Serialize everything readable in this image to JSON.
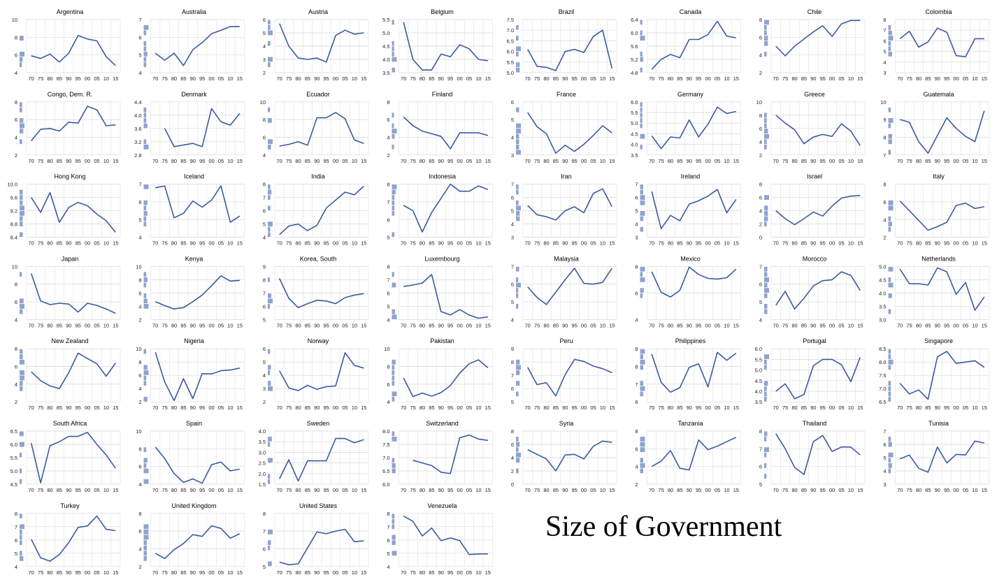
{
  "figure": {
    "title": "Size of Government",
    "line_color": "#3A5BA0",
    "hist_color": "#8FA3CF",
    "grid_color": "#D9D9D9",
    "x_tick_labels": [
      "70",
      "75",
      "80",
      "85",
      "90",
      "95",
      "00",
      "05",
      "10",
      "15"
    ]
  },
  "chart_data": [
    {
      "type": "line",
      "title": "Argentina",
      "ylim": [
        4,
        10
      ],
      "yticks": [
        4,
        6,
        8,
        10
      ],
      "y": [
        5.9,
        5.6,
        6.1,
        5.2,
        6.2,
        8.2,
        7.8,
        7.6,
        5.8,
        4.8
      ]
    },
    {
      "type": "line",
      "title": "Australia",
      "ylim": [
        4,
        7
      ],
      "yticks": [
        4,
        5,
        6,
        7
      ],
      "y": [
        5.1,
        4.7,
        5.1,
        4.4,
        5.3,
        5.7,
        6.2,
        6.4,
        6.6,
        6.6
      ]
    },
    {
      "type": "line",
      "title": "Austria",
      "ylim": [
        2,
        6
      ],
      "yticks": [
        2,
        3,
        4,
        5,
        6
      ],
      "y": [
        5.7,
        4.0,
        3.1,
        3.0,
        3.1,
        2.8,
        4.8,
        5.2,
        4.9,
        5.0
      ]
    },
    {
      "type": "line",
      "title": "Belgium",
      "ylim": [
        3.5,
        5.5
      ],
      "yticks": [
        3.5,
        4.0,
        4.5,
        5.0,
        5.5
      ],
      "y": [
        5.4,
        4.0,
        3.6,
        3.6,
        4.2,
        4.1,
        4.55,
        4.4,
        4.0,
        3.95
      ]
    },
    {
      "type": "line",
      "title": "Brazil",
      "ylim": [
        5.0,
        7.5
      ],
      "yticks": [
        5.0,
        5.5,
        6.0,
        6.5,
        7.0,
        7.5
      ],
      "y": [
        6.1,
        5.3,
        5.25,
        5.1,
        6.0,
        6.1,
        5.95,
        6.7,
        7.0,
        5.2
      ]
    },
    {
      "type": "line",
      "title": "Canada",
      "ylim": [
        4.8,
        6.4
      ],
      "yticks": [
        4.8,
        5.2,
        5.6,
        6.0,
        6.4
      ],
      "y": [
        4.9,
        5.2,
        5.35,
        5.25,
        5.8,
        5.8,
        5.95,
        6.35,
        5.9,
        5.85
      ]
    },
    {
      "type": "line",
      "title": "Chile",
      "ylim": [
        2,
        8
      ],
      "yticks": [
        2,
        4,
        6,
        8
      ],
      "y": [
        5.0,
        3.9,
        5.0,
        5.8,
        6.6,
        7.3,
        6.1,
        7.5,
        7.9,
        7.9
      ]
    },
    {
      "type": "line",
      "title": "Colombia",
      "ylim": [
        3,
        8
      ],
      "yticks": [
        3,
        4,
        5,
        6,
        7,
        8
      ],
      "y": [
        6.2,
        6.9,
        5.4,
        5.9,
        7.2,
        6.8,
        4.6,
        4.5,
        6.2,
        6.2
      ]
    },
    {
      "type": "line",
      "title": "Congo, Dem. R.",
      "ylim": [
        2,
        8
      ],
      "yticks": [
        2,
        4,
        6,
        8
      ],
      "y": [
        3.6,
        4.9,
        5.0,
        4.7,
        5.7,
        5.6,
        7.5,
        7.1,
        5.3,
        5.4
      ]
    },
    {
      "type": "line",
      "title": "Denmark",
      "ylim": [
        2.8,
        4.4
      ],
      "yticks": [
        2.8,
        3.2,
        3.6,
        4.0,
        4.4
      ],
      "y": [
        null,
        3.6,
        3.05,
        3.1,
        3.15,
        3.05,
        4.2,
        3.8,
        3.7,
        4.05
      ]
    },
    {
      "type": "line",
      "title": "Ecuador",
      "ylim": [
        4,
        10
      ],
      "yticks": [
        4,
        6,
        8,
        10
      ],
      "y": [
        5.0,
        5.2,
        5.5,
        5.1,
        8.2,
        8.2,
        8.8,
        8.1,
        5.7,
        5.3
      ]
    },
    {
      "type": "line",
      "title": "Finland",
      "ylim": [
        2,
        8
      ],
      "yticks": [
        2,
        4,
        6,
        8
      ],
      "y": [
        6.3,
        5.3,
        4.7,
        4.4,
        4.1,
        2.7,
        4.5,
        4.5,
        4.5,
        4.2
      ]
    },
    {
      "type": "line",
      "title": "France",
      "ylim": [
        3,
        6
      ],
      "yticks": [
        3,
        4,
        5,
        6
      ],
      "y": [
        5.4,
        4.6,
        4.2,
        3.1,
        3.55,
        3.2,
        3.6,
        4.1,
        4.65,
        4.25
      ]
    },
    {
      "type": "line",
      "title": "Germany",
      "ylim": [
        3.5,
        6.0
      ],
      "yticks": [
        3.5,
        4.0,
        4.5,
        5.0,
        5.5,
        6.0
      ],
      "y": [
        4.4,
        3.8,
        4.35,
        4.3,
        5.15,
        4.35,
        4.95,
        5.75,
        5.45,
        5.55
      ]
    },
    {
      "type": "line",
      "title": "Greece",
      "ylim": [
        2,
        10
      ],
      "yticks": [
        2,
        4,
        6,
        8,
        10
      ],
      "y": [
        8.0,
        6.8,
        5.8,
        3.7,
        4.7,
        5.1,
        4.8,
        6.7,
        5.6,
        3.4
      ]
    },
    {
      "type": "line",
      "title": "Guatemala",
      "ylim": [
        7,
        10
      ],
      "yticks": [
        7,
        8,
        9,
        10
      ],
      "y": [
        9.0,
        8.85,
        7.75,
        7.1,
        8.1,
        9.1,
        8.5,
        8.05,
        7.75,
        9.5
      ]
    },
    {
      "type": "line",
      "title": "Hong Kong",
      "ylim": [
        8.4,
        10.0
      ],
      "yticks": [
        8.4,
        8.8,
        9.2,
        9.6,
        10.0
      ],
      "y": [
        9.6,
        9.15,
        9.75,
        8.85,
        9.3,
        9.45,
        9.35,
        9.1,
        8.9,
        8.55
      ]
    },
    {
      "type": "line",
      "title": "Iceland",
      "ylim": [
        4,
        7
      ],
      "yticks": [
        4,
        5,
        6,
        7
      ],
      "y": [
        6.8,
        6.9,
        5.1,
        5.35,
        6.05,
        5.7,
        6.1,
        6.9,
        4.85,
        5.2
      ]
    },
    {
      "type": "line",
      "title": "India",
      "ylim": [
        4,
        8
      ],
      "yticks": [
        4,
        5,
        6,
        7,
        8
      ],
      "y": [
        4.2,
        4.85,
        5.0,
        4.5,
        4.9,
        6.2,
        6.8,
        7.4,
        7.2,
        7.85
      ]
    },
    {
      "type": "line",
      "title": "Indonesia",
      "ylim": [
        5,
        8
      ],
      "yticks": [
        5,
        6,
        7,
        8
      ],
      "y": [
        6.8,
        6.5,
        5.3,
        6.4,
        7.2,
        8.0,
        7.6,
        7.6,
        7.9,
        7.7
      ]
    },
    {
      "type": "line",
      "title": "Iran",
      "ylim": [
        3,
        7
      ],
      "yticks": [
        3,
        4,
        5,
        6,
        7
      ],
      "y": [
        5.4,
        4.7,
        4.55,
        4.3,
        5.0,
        5.3,
        4.85,
        6.3,
        6.65,
        5.3
      ]
    },
    {
      "type": "line",
      "title": "Ireland",
      "ylim": [
        3,
        7
      ],
      "yticks": [
        3,
        4,
        5,
        6,
        7
      ],
      "y": [
        6.45,
        3.65,
        4.65,
        4.25,
        5.5,
        5.75,
        6.1,
        6.6,
        4.85,
        5.85
      ]
    },
    {
      "type": "line",
      "title": "Israel",
      "ylim": [
        0,
        8
      ],
      "yticks": [
        0,
        2,
        4,
        6,
        8
      ],
      "y": [
        4.0,
        2.8,
        1.9,
        2.8,
        3.8,
        3.2,
        4.7,
        5.9,
        6.2,
        6.3
      ]
    },
    {
      "type": "line",
      "title": "Italy",
      "ylim": [
        2,
        8
      ],
      "yticks": [
        2,
        4,
        6,
        8
      ],
      "y": [
        6.1,
        5.0,
        3.9,
        2.8,
        3.2,
        3.7,
        5.6,
        5.85,
        5.25,
        5.45
      ]
    },
    {
      "type": "line",
      "title": "Japan",
      "ylim": [
        4,
        10
      ],
      "yticks": [
        4,
        6,
        8,
        10
      ],
      "y": [
        9.2,
        6.1,
        5.7,
        5.85,
        5.75,
        4.85,
        5.85,
        5.6,
        5.2,
        4.7
      ]
    },
    {
      "type": "line",
      "title": "Kenya",
      "ylim": [
        2,
        10
      ],
      "yticks": [
        2,
        4,
        6,
        8,
        10
      ],
      "y": [
        4.7,
        4.1,
        3.6,
        3.8,
        4.7,
        5.7,
        7.1,
        8.6,
        7.8,
        7.9
      ]
    },
    {
      "type": "line",
      "title": "Korea, South",
      "ylim": [
        5,
        9
      ],
      "yticks": [
        5,
        6,
        7,
        8,
        9
      ],
      "y": [
        8.1,
        6.6,
        5.9,
        6.2,
        6.45,
        6.4,
        6.2,
        6.65,
        6.85,
        6.95
      ]
    },
    {
      "type": "line",
      "title": "Luxembourg",
      "ylim": [
        4,
        8
      ],
      "yticks": [
        4,
        5,
        6,
        7,
        8
      ],
      "y": [
        6.5,
        6.6,
        6.75,
        7.4,
        4.6,
        4.35,
        4.75,
        4.35,
        4.1,
        4.2
      ]
    },
    {
      "type": "line",
      "title": "Malaysia",
      "ylim": [
        4,
        7
      ],
      "yticks": [
        4,
        5,
        6,
        7
      ],
      "y": [
        5.85,
        5.25,
        4.85,
        5.55,
        6.25,
        6.9,
        6.05,
        6.0,
        6.1,
        6.9
      ]
    },
    {
      "type": "line",
      "title": "Mexico",
      "ylim": [
        4,
        8
      ],
      "yticks": [
        4,
        6,
        8
      ],
      "y": [
        7.6,
        6.05,
        5.7,
        6.2,
        7.95,
        7.4,
        7.1,
        7.05,
        7.15,
        7.8
      ]
    },
    {
      "type": "line",
      "title": "Morocco",
      "ylim": [
        4,
        7
      ],
      "yticks": [
        4,
        5,
        6,
        7
      ],
      "y": [
        4.8,
        5.6,
        4.6,
        5.2,
        5.9,
        6.2,
        6.25,
        6.7,
        6.5,
        5.65
      ]
    },
    {
      "type": "line",
      "title": "Netherlands",
      "ylim": [
        3.0,
        5.0
      ],
      "yticks": [
        3.0,
        3.5,
        4.0,
        4.5,
        5.0
      ],
      "y": [
        4.9,
        4.35,
        4.35,
        4.3,
        4.95,
        4.8,
        3.95,
        4.4,
        3.35,
        3.85
      ]
    },
    {
      "type": "line",
      "title": "New Zealand",
      "ylim": [
        2,
        8
      ],
      "yticks": [
        2,
        4,
        6,
        8
      ],
      "y": [
        5.4,
        4.4,
        3.8,
        3.5,
        5.3,
        7.5,
        6.9,
        6.3,
        4.9,
        6.4
      ]
    },
    {
      "type": "line",
      "title": "Nigeria",
      "ylim": [
        2,
        10
      ],
      "yticks": [
        2,
        4,
        6,
        8,
        10
      ],
      "y": [
        9.5,
        5.0,
        2.2,
        5.5,
        2.5,
        6.25,
        6.2,
        6.7,
        6.8,
        7.1
      ]
    },
    {
      "type": "line",
      "title": "Norway",
      "ylim": [
        2,
        6
      ],
      "yticks": [
        2,
        3,
        4,
        5,
        6
      ],
      "y": [
        4.35,
        3.05,
        2.85,
        3.25,
        2.95,
        3.15,
        3.2,
        5.7,
        4.75,
        4.55
      ]
    },
    {
      "type": "line",
      "title": "Pakistan",
      "ylim": [
        4,
        10
      ],
      "yticks": [
        4,
        6,
        8,
        10
      ],
      "y": [
        6.7,
        4.6,
        5.0,
        4.65,
        5.05,
        5.85,
        7.25,
        8.3,
        8.75,
        7.85
      ]
    },
    {
      "type": "line",
      "title": "Peru",
      "ylim": [
        5,
        9
      ],
      "yticks": [
        5,
        6,
        7,
        8,
        9
      ],
      "y": [
        7.6,
        6.3,
        6.45,
        5.45,
        7.05,
        8.2,
        8.05,
        7.7,
        7.5,
        7.2
      ]
    },
    {
      "type": "line",
      "title": "Philippines",
      "ylim": [
        6,
        9
      ],
      "yticks": [
        6,
        7,
        8,
        9
      ],
      "y": [
        8.7,
        7.1,
        6.55,
        6.8,
        7.95,
        8.15,
        6.85,
        8.8,
        8.35,
        8.75
      ]
    },
    {
      "type": "line",
      "title": "Portugal",
      "ylim": [
        3.5,
        6.0
      ],
      "yticks": [
        3.5,
        4.0,
        4.5,
        5.0,
        5.5,
        6.0
      ],
      "y": [
        4.0,
        4.35,
        3.65,
        3.85,
        5.2,
        5.5,
        5.5,
        5.25,
        4.45,
        5.6
      ]
    },
    {
      "type": "line",
      "title": "Singapore",
      "ylim": [
        6.5,
        8.5
      ],
      "yticks": [
        6.5,
        7.0,
        7.5,
        8.0,
        8.5
      ],
      "y": [
        7.2,
        6.8,
        6.95,
        6.6,
        8.2,
        8.4,
        7.95,
        8.0,
        8.05,
        7.8
      ]
    },
    {
      "type": "line",
      "title": "South Africa",
      "ylim": [
        4.5,
        6.5
      ],
      "yticks": [
        4.5,
        5.0,
        5.5,
        6.0,
        6.5
      ],
      "y": [
        6.05,
        4.55,
        5.95,
        6.1,
        6.3,
        6.3,
        6.45,
        6.0,
        5.6,
        5.1
      ]
    },
    {
      "type": "line",
      "title": "Spain",
      "ylim": [
        4,
        10
      ],
      "yticks": [
        4,
        6,
        8,
        10
      ],
      "y": [
        8.2,
        6.9,
        5.2,
        4.2,
        4.6,
        4.1,
        6.2,
        6.5,
        5.5,
        5.7
      ]
    },
    {
      "type": "line",
      "title": "Sweden",
      "ylim": [
        1.5,
        4.0
      ],
      "yticks": [
        1.5,
        2.0,
        2.5,
        3.0,
        3.5,
        4.0
      ],
      "y": [
        1.75,
        2.65,
        1.65,
        2.6,
        2.6,
        2.6,
        3.65,
        3.65,
        3.45,
        3.6
      ]
    },
    {
      "type": "line",
      "title": "Switzerland",
      "ylim": [
        6.0,
        8.0
      ],
      "yticks": [
        6.0,
        6.5,
        7.0,
        7.5,
        8.0
      ],
      "y": [
        null,
        6.9,
        6.8,
        6.7,
        6.45,
        6.4,
        7.75,
        7.85,
        7.7,
        7.65
      ]
    },
    {
      "type": "line",
      "title": "Syria",
      "ylim": [
        0,
        8
      ],
      "yticks": [
        0,
        2,
        4,
        6,
        8
      ],
      "y": [
        5.2,
        4.5,
        3.8,
        2.0,
        4.4,
        4.5,
        3.8,
        5.7,
        6.5,
        6.3
      ]
    },
    {
      "type": "line",
      "title": "Tanzania",
      "ylim": [
        2,
        8
      ],
      "yticks": [
        2,
        4,
        6,
        8
      ],
      "y": [
        4.0,
        4.6,
        5.8,
        3.8,
        3.6,
        7.0,
        5.9,
        6.3,
        6.8,
        7.3
      ]
    },
    {
      "type": "line",
      "title": "Thailand",
      "ylim": [
        5,
        8
      ],
      "yticks": [
        5,
        6,
        7,
        8
      ],
      "y": [
        7.85,
        7.0,
        5.95,
        5.55,
        7.4,
        7.75,
        6.85,
        7.1,
        7.1,
        6.65
      ]
    },
    {
      "type": "line",
      "title": "Tunisia",
      "ylim": [
        3,
        7
      ],
      "yticks": [
        3,
        4,
        5,
        6,
        7
      ],
      "y": [
        4.9,
        5.2,
        4.2,
        3.9,
        5.8,
        4.6,
        5.25,
        5.2,
        6.25,
        6.1
      ]
    },
    {
      "type": "line",
      "title": "Turkey",
      "ylim": [
        4,
        8
      ],
      "yticks": [
        4,
        5,
        6,
        7,
        8
      ],
      "y": [
        6.05,
        4.65,
        4.4,
        4.9,
        5.8,
        6.95,
        7.05,
        7.8,
        6.8,
        6.7
      ]
    },
    {
      "type": "line",
      "title": "United Kingdom",
      "ylim": [
        2,
        8
      ],
      "yticks": [
        2,
        4,
        6,
        8
      ],
      "y": [
        3.5,
        2.9,
        3.9,
        4.6,
        5.6,
        5.4,
        6.6,
        6.3,
        5.2,
        5.7
      ]
    },
    {
      "type": "line",
      "title": "United States",
      "ylim": [
        5,
        8
      ],
      "yticks": [
        5,
        6,
        7,
        8
      ],
      "y": [
        5.25,
        5.1,
        5.15,
        6.05,
        6.95,
        6.85,
        7.0,
        7.1,
        6.4,
        6.45
      ]
    },
    {
      "type": "line",
      "title": "Venezuela",
      "ylim": [
        4,
        8
      ],
      "yticks": [
        4,
        5,
        6,
        7,
        8
      ],
      "y": [
        7.8,
        7.4,
        6.3,
        6.9,
        5.95,
        6.15,
        5.95,
        4.9,
        4.95,
        4.95
      ]
    }
  ]
}
